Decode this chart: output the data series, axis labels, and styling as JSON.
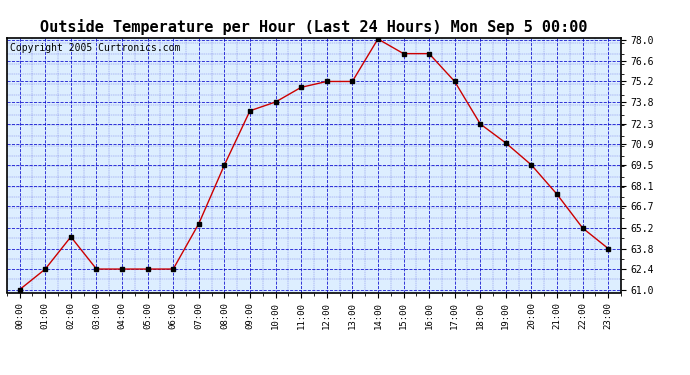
{
  "title": "Outside Temperature per Hour (Last 24 Hours) Mon Sep 5 00:00",
  "copyright": "Copyright 2005 Curtronics.com",
  "hours": [
    "00:00",
    "01:00",
    "02:00",
    "03:00",
    "04:00",
    "05:00",
    "06:00",
    "07:00",
    "08:00",
    "09:00",
    "10:00",
    "11:00",
    "12:00",
    "13:00",
    "14:00",
    "15:00",
    "16:00",
    "17:00",
    "18:00",
    "19:00",
    "20:00",
    "21:00",
    "22:00",
    "23:00"
  ],
  "temperatures": [
    61.0,
    62.4,
    64.6,
    62.4,
    62.4,
    62.4,
    62.4,
    65.5,
    69.5,
    73.2,
    73.8,
    74.8,
    75.2,
    75.2,
    78.1,
    77.1,
    77.1,
    75.2,
    72.3,
    71.0,
    69.5,
    67.5,
    65.2,
    63.8
  ],
  "line_color": "#cc0000",
  "marker_color": "#000000",
  "bg_color": "#ffffff",
  "plot_bg": "#ddeeff",
  "grid_color": "#0000cc",
  "title_fontsize": 11,
  "copyright_fontsize": 7,
  "ylim": [
    61.0,
    78.0
  ],
  "yticks": [
    61.0,
    62.4,
    63.8,
    65.2,
    66.7,
    68.1,
    69.5,
    70.9,
    72.3,
    73.8,
    75.2,
    76.6,
    78.0
  ]
}
